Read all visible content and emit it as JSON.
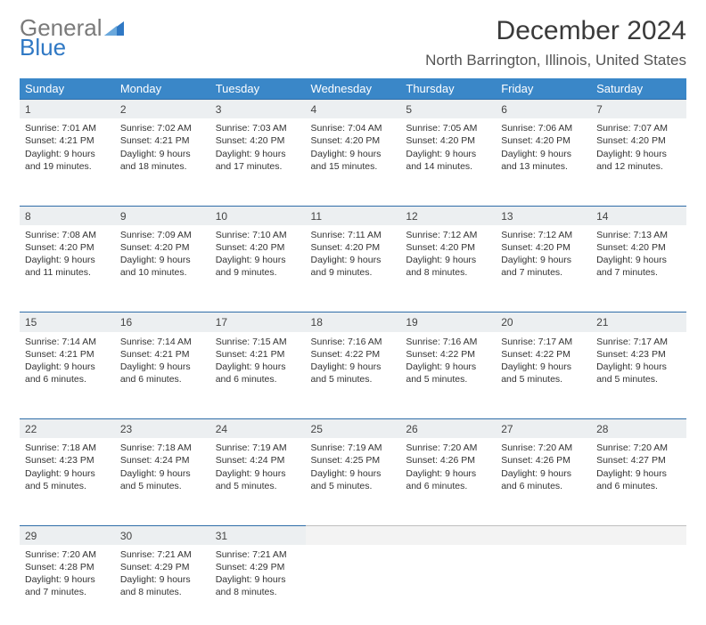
{
  "logo": {
    "part1": "General",
    "part2": "Blue"
  },
  "title": "December 2024",
  "location": "North Barrington, Illinois, United States",
  "colors": {
    "header_bg": "#3a87c8",
    "day_bg": "#eceff1",
    "rule": "#2f6da8",
    "logo_gray": "#7a7a7a",
    "logo_blue": "#2f78c4"
  },
  "weekdays": [
    "Sunday",
    "Monday",
    "Tuesday",
    "Wednesday",
    "Thursday",
    "Friday",
    "Saturday"
  ],
  "weeks": [
    [
      {
        "n": 1,
        "sr": "7:01 AM",
        "ss": "4:21 PM",
        "dl": "9 hours and 19 minutes."
      },
      {
        "n": 2,
        "sr": "7:02 AM",
        "ss": "4:21 PM",
        "dl": "9 hours and 18 minutes."
      },
      {
        "n": 3,
        "sr": "7:03 AM",
        "ss": "4:20 PM",
        "dl": "9 hours and 17 minutes."
      },
      {
        "n": 4,
        "sr": "7:04 AM",
        "ss": "4:20 PM",
        "dl": "9 hours and 15 minutes."
      },
      {
        "n": 5,
        "sr": "7:05 AM",
        "ss": "4:20 PM",
        "dl": "9 hours and 14 minutes."
      },
      {
        "n": 6,
        "sr": "7:06 AM",
        "ss": "4:20 PM",
        "dl": "9 hours and 13 minutes."
      },
      {
        "n": 7,
        "sr": "7:07 AM",
        "ss": "4:20 PM",
        "dl": "9 hours and 12 minutes."
      }
    ],
    [
      {
        "n": 8,
        "sr": "7:08 AM",
        "ss": "4:20 PM",
        "dl": "9 hours and 11 minutes."
      },
      {
        "n": 9,
        "sr": "7:09 AM",
        "ss": "4:20 PM",
        "dl": "9 hours and 10 minutes."
      },
      {
        "n": 10,
        "sr": "7:10 AM",
        "ss": "4:20 PM",
        "dl": "9 hours and 9 minutes."
      },
      {
        "n": 11,
        "sr": "7:11 AM",
        "ss": "4:20 PM",
        "dl": "9 hours and 9 minutes."
      },
      {
        "n": 12,
        "sr": "7:12 AM",
        "ss": "4:20 PM",
        "dl": "9 hours and 8 minutes."
      },
      {
        "n": 13,
        "sr": "7:12 AM",
        "ss": "4:20 PM",
        "dl": "9 hours and 7 minutes."
      },
      {
        "n": 14,
        "sr": "7:13 AM",
        "ss": "4:20 PM",
        "dl": "9 hours and 7 minutes."
      }
    ],
    [
      {
        "n": 15,
        "sr": "7:14 AM",
        "ss": "4:21 PM",
        "dl": "9 hours and 6 minutes."
      },
      {
        "n": 16,
        "sr": "7:14 AM",
        "ss": "4:21 PM",
        "dl": "9 hours and 6 minutes."
      },
      {
        "n": 17,
        "sr": "7:15 AM",
        "ss": "4:21 PM",
        "dl": "9 hours and 6 minutes."
      },
      {
        "n": 18,
        "sr": "7:16 AM",
        "ss": "4:22 PM",
        "dl": "9 hours and 5 minutes."
      },
      {
        "n": 19,
        "sr": "7:16 AM",
        "ss": "4:22 PM",
        "dl": "9 hours and 5 minutes."
      },
      {
        "n": 20,
        "sr": "7:17 AM",
        "ss": "4:22 PM",
        "dl": "9 hours and 5 minutes."
      },
      {
        "n": 21,
        "sr": "7:17 AM",
        "ss": "4:23 PM",
        "dl": "9 hours and 5 minutes."
      }
    ],
    [
      {
        "n": 22,
        "sr": "7:18 AM",
        "ss": "4:23 PM",
        "dl": "9 hours and 5 minutes."
      },
      {
        "n": 23,
        "sr": "7:18 AM",
        "ss": "4:24 PM",
        "dl": "9 hours and 5 minutes."
      },
      {
        "n": 24,
        "sr": "7:19 AM",
        "ss": "4:24 PM",
        "dl": "9 hours and 5 minutes."
      },
      {
        "n": 25,
        "sr": "7:19 AM",
        "ss": "4:25 PM",
        "dl": "9 hours and 5 minutes."
      },
      {
        "n": 26,
        "sr": "7:20 AM",
        "ss": "4:26 PM",
        "dl": "9 hours and 6 minutes."
      },
      {
        "n": 27,
        "sr": "7:20 AM",
        "ss": "4:26 PM",
        "dl": "9 hours and 6 minutes."
      },
      {
        "n": 28,
        "sr": "7:20 AM",
        "ss": "4:27 PM",
        "dl": "9 hours and 6 minutes."
      }
    ],
    [
      {
        "n": 29,
        "sr": "7:20 AM",
        "ss": "4:28 PM",
        "dl": "9 hours and 7 minutes."
      },
      {
        "n": 30,
        "sr": "7:21 AM",
        "ss": "4:29 PM",
        "dl": "9 hours and 8 minutes."
      },
      {
        "n": 31,
        "sr": "7:21 AM",
        "ss": "4:29 PM",
        "dl": "9 hours and 8 minutes."
      },
      null,
      null,
      null,
      null
    ]
  ],
  "labels": {
    "sunrise": "Sunrise:",
    "sunset": "Sunset:",
    "daylight": "Daylight:"
  }
}
